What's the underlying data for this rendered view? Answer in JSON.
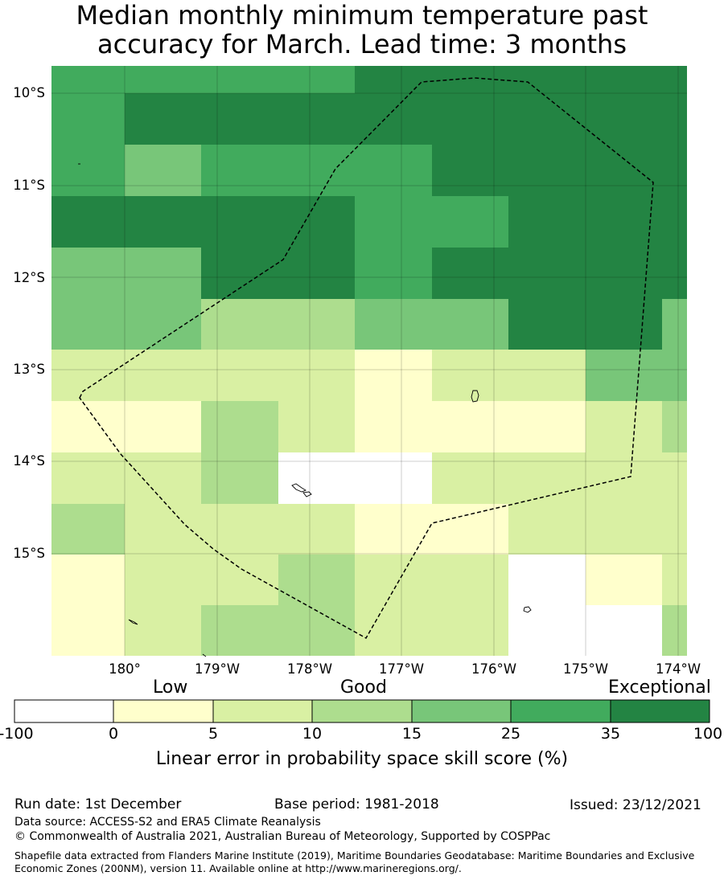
{
  "title_line1": "Median monthly minimum temperature past",
  "title_line2": "accuracy for March. Lead time: 3 months",
  "lat_labels": [
    "10°S",
    "11°S",
    "12°S",
    "13°S",
    "14°S",
    "15°S"
  ],
  "lon_labels": [
    "180°",
    "179°W",
    "178°W",
    "177°W",
    "176°W",
    "175°W",
    "174°W"
  ],
  "colorbar": {
    "categories": [
      "Low",
      "Good",
      "Exceptional"
    ],
    "ticks": [
      "-100",
      "0",
      "5",
      "10",
      "15",
      "25",
      "35",
      "100"
    ],
    "colors": [
      "#ffffff",
      "#ffffcc",
      "#d9f0a3",
      "#addd8e",
      "#78c679",
      "#41ab5d",
      "#238443"
    ],
    "label": "Linear error in probability space skill score (%)"
  },
  "grid_class_rows": [
    "5555666665",
    "5666666666",
    "5455566666",
    "6666556665",
    "4466566665",
    "4433446645",
    "2222122442",
    "1132111234",
    "2230022224",
    "3222112222",
    "1223220123",
    "1233220033"
  ],
  "footer": {
    "run_date": "Run date: 1st December",
    "base_period": "Base period: 1981-2018",
    "issued": "Issued: 23/12/2021",
    "data_source": "Data source: ACCESS-S2 and ERA5 Climate Reanalysis",
    "copyright": "© Commonwealth of Australia 2021, Australian Bureau of Meteorology, Supported by COSPPac",
    "shapefile": "Shapefile data extracted from Flanders Marine Institute (2019), Maritime Boundaries Geodatabase: Maritime Boundaries and Exclusive Economic Zones (200NM), version 11. Available online at http://www.marineregions.org/."
  }
}
